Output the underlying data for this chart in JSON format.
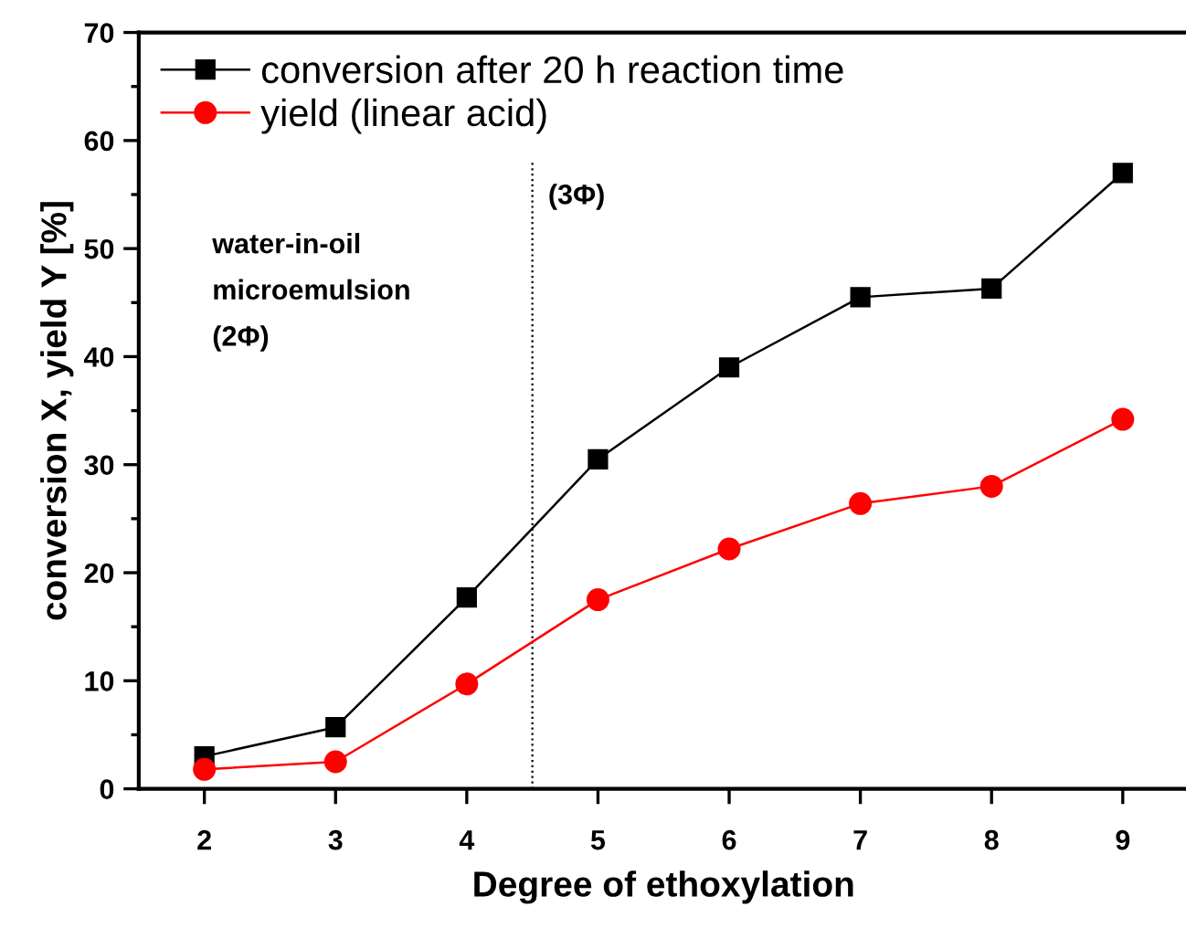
{
  "chart_data": {
    "type": "line",
    "xlabel": "Degree of ethoxylation",
    "ylabel": "conversion X, yield Y [%]",
    "x": [
      2,
      3,
      4,
      5,
      6,
      7,
      8,
      9
    ],
    "series": [
      {
        "name": "conversion after 20 h reaction time",
        "color": "#000000",
        "marker": "square",
        "values": [
          3.0,
          5.7,
          17.7,
          30.5,
          39.0,
          45.5,
          46.3,
          57.0
        ]
      },
      {
        "name": "yield (linear acid)",
        "color": "#ff0000",
        "marker": "circle",
        "values": [
          1.8,
          2.5,
          9.7,
          17.5,
          22.2,
          26.4,
          28.0,
          34.2
        ]
      }
    ],
    "xlim": [
      1.5,
      9.5
    ],
    "xticks": [
      2,
      3,
      4,
      5,
      6,
      7,
      8,
      9
    ],
    "ylim": [
      0,
      70
    ],
    "yticks": [
      0,
      10,
      20,
      30,
      40,
      50,
      60,
      70
    ],
    "ref_lines": [
      {
        "axis": "x",
        "value": 4.5,
        "color": "#000000",
        "line_style": "dotted"
      }
    ],
    "annotations": [
      "water-in-oil\nmicroemulsion\n(2Φ)",
      "(3Φ)"
    ],
    "grid": false,
    "legend": "top left",
    "line_style": "solid"
  }
}
